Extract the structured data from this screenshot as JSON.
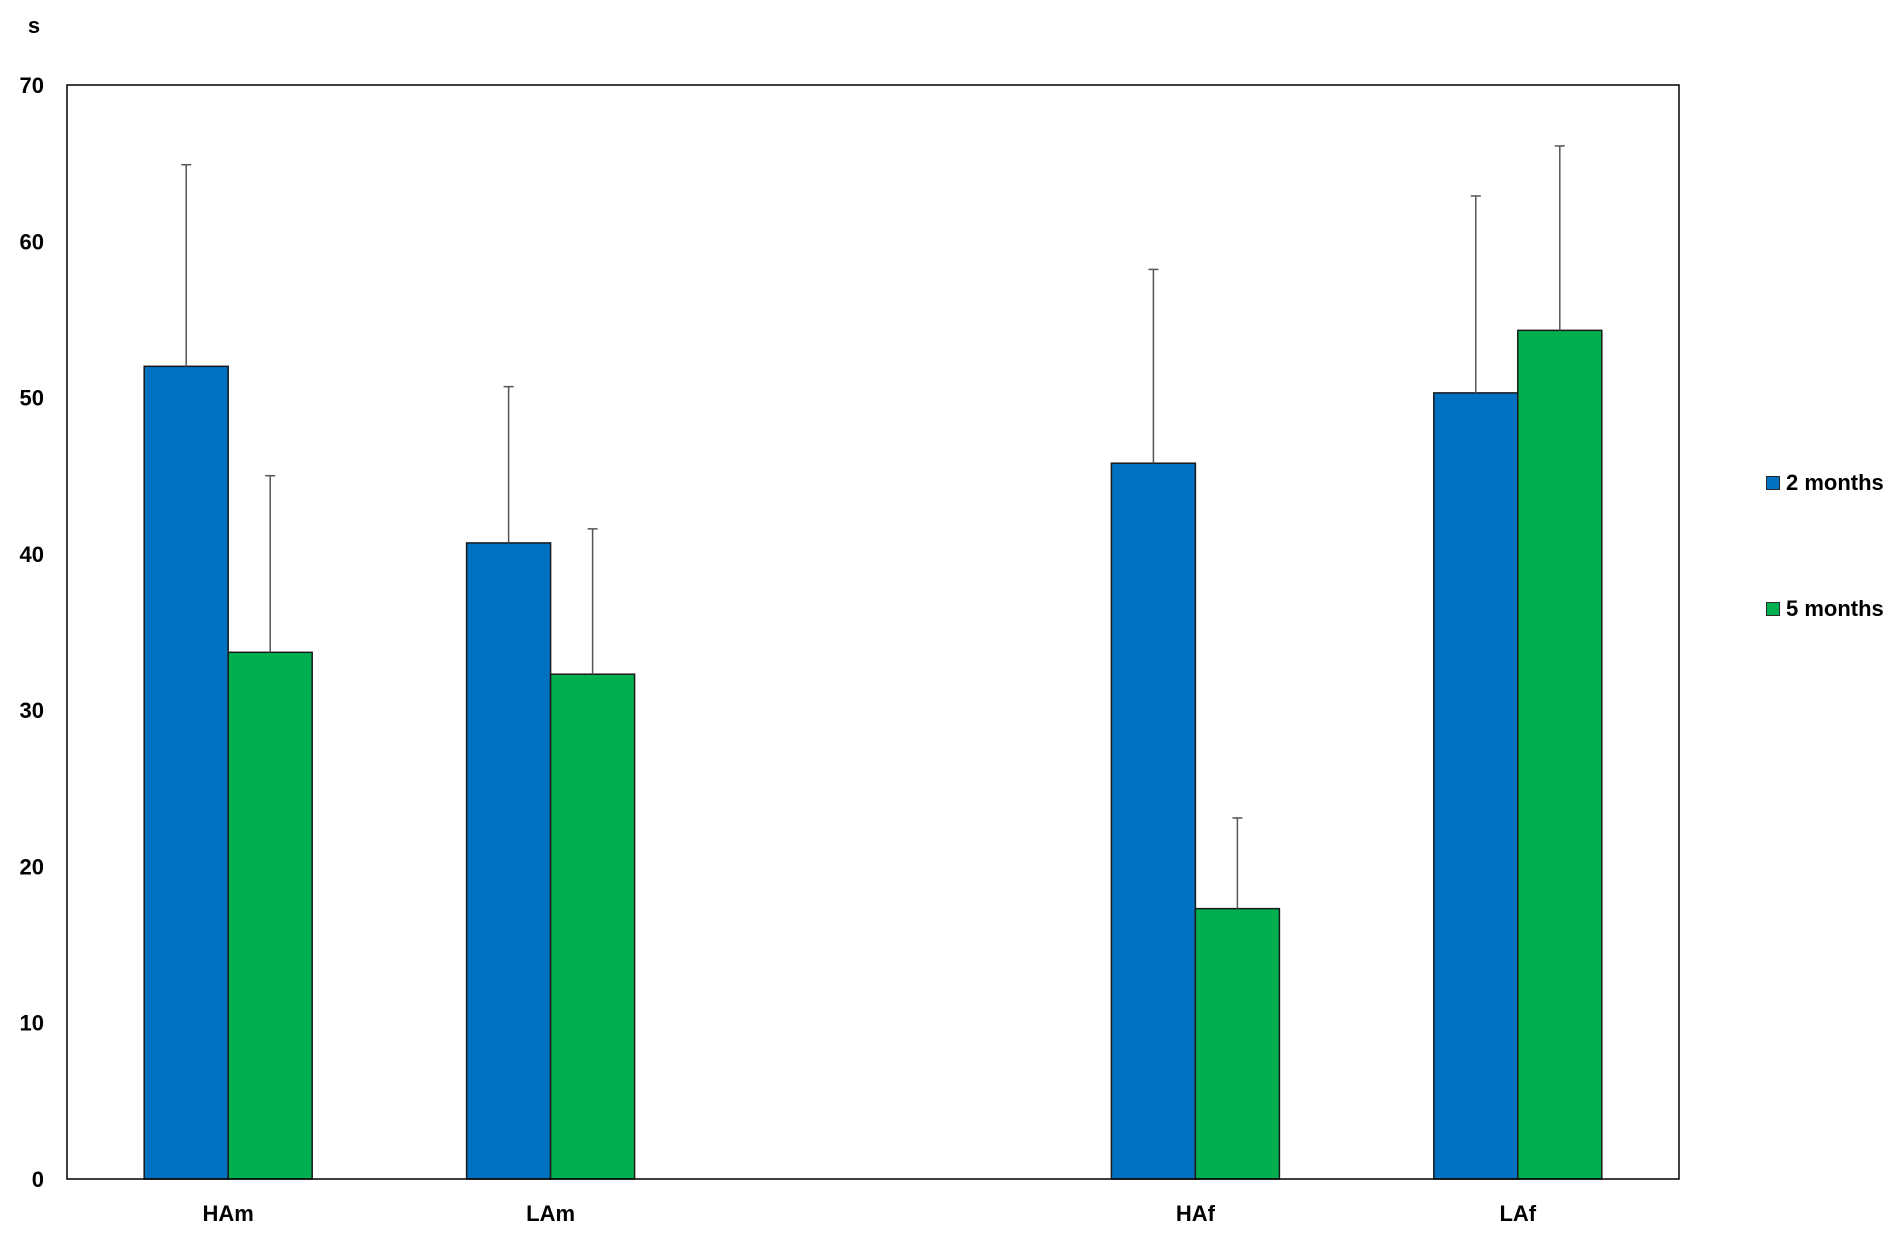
{
  "chart_data": {
    "type": "bar",
    "title": "",
    "ylabel": "s",
    "xlabel": "",
    "ylim": [
      0,
      70
    ],
    "yticks": [
      0,
      10,
      20,
      30,
      40,
      50,
      60,
      70
    ],
    "categories": [
      "HAm",
      "LAm",
      "",
      "HAf",
      "LAf"
    ],
    "series": [
      {
        "name": "2 months",
        "color": "#0070C0",
        "values": [
          52.0,
          40.7,
          null,
          45.8,
          50.3
        ],
        "error": [
          12.9,
          10.0,
          null,
          12.4,
          12.6
        ]
      },
      {
        "name": "5 months",
        "color": "#00B050",
        "values": [
          33.7,
          32.3,
          null,
          17.3,
          54.3
        ],
        "error": [
          11.3,
          9.3,
          null,
          5.8,
          11.8
        ]
      }
    ],
    "grid": false,
    "legend": "right"
  }
}
